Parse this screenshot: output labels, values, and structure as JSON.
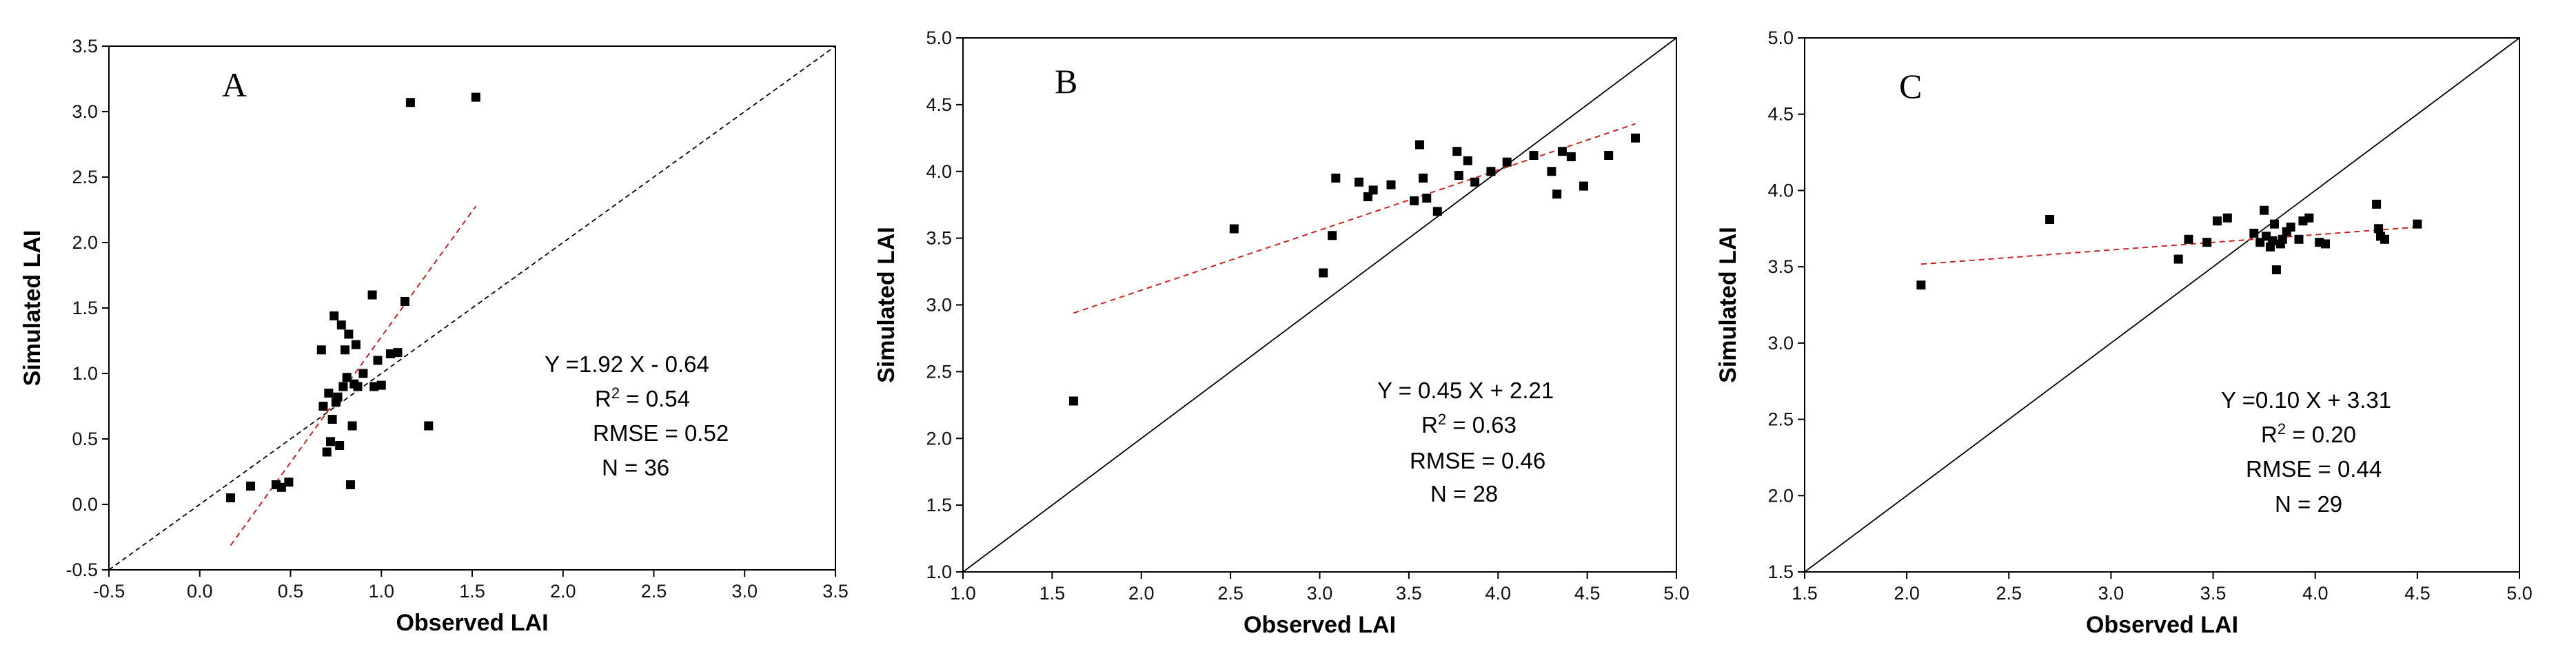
{
  "chart_data": [
    {
      "type": "scatter",
      "panel_label": "A",
      "xlabel": "Observed LAI",
      "ylabel": "Simulated LAI",
      "xlim": [
        -0.5,
        3.5
      ],
      "ylim": [
        -0.5,
        3.5
      ],
      "xticks": [
        "-0.5",
        "0.0",
        "0.5",
        "1.0",
        "1.5",
        "2.0",
        "2.5",
        "3.0",
        "3.5"
      ],
      "yticks": [
        "-0.5",
        "0.0",
        "0.5",
        "1.0",
        "1.5",
        "2.0",
        "2.5",
        "3.0",
        "3.5"
      ],
      "one_to_one_line": "dashed",
      "fit_line": {
        "slope": 1.92,
        "intercept": -0.64,
        "x_range": [
          0.17,
          1.52
        ],
        "color": "#cc2222",
        "style": "dashed"
      },
      "stats": {
        "equation": "Y =1.92 X - 0.64",
        "r2_label": "R",
        "r2_sup": "2",
        "r2_value": " =  0.54",
        "rmse": "RMSE = 0.52",
        "n": "N = 36"
      },
      "points": [
        [
          0.17,
          0.05
        ],
        [
          0.28,
          0.14
        ],
        [
          0.42,
          0.15
        ],
        [
          0.45,
          0.13
        ],
        [
          0.49,
          0.17
        ],
        [
          0.67,
          1.18
        ],
        [
          0.68,
          0.75
        ],
        [
          0.7,
          0.4
        ],
        [
          0.71,
          0.85
        ],
        [
          0.72,
          0.48
        ],
        [
          0.73,
          0.65
        ],
        [
          0.74,
          1.44
        ],
        [
          0.75,
          0.78
        ],
        [
          0.76,
          0.82
        ],
        [
          0.77,
          0.45
        ],
        [
          0.78,
          1.37
        ],
        [
          0.79,
          0.9
        ],
        [
          0.8,
          1.18
        ],
        [
          0.81,
          0.97
        ],
        [
          0.82,
          1.3
        ],
        [
          0.83,
          0.15
        ],
        [
          0.84,
          0.6
        ],
        [
          0.85,
          0.92
        ],
        [
          0.86,
          1.22
        ],
        [
          0.87,
          0.9
        ],
        [
          0.9,
          1.0
        ],
        [
          0.95,
          1.6
        ],
        [
          0.96,
          0.9
        ],
        [
          0.98,
          1.1
        ],
        [
          1.0,
          0.91
        ],
        [
          1.05,
          1.15
        ],
        [
          1.09,
          1.16
        ],
        [
          1.13,
          1.55
        ],
        [
          1.16,
          3.07
        ],
        [
          1.26,
          0.6
        ],
        [
          1.52,
          3.11
        ]
      ]
    },
    {
      "type": "scatter",
      "panel_label": "B",
      "xlabel": "Observed LAI",
      "ylabel": "Simulated LAI",
      "xlim": [
        1.0,
        5.0
      ],
      "ylim": [
        1.0,
        5.0
      ],
      "xticks": [
        "1.0",
        "1.5",
        "2.0",
        "2.5",
        "3.0",
        "3.5",
        "4.0",
        "4.5",
        "5.0"
      ],
      "yticks": [
        "1.0",
        "1.5",
        "2.0",
        "2.5",
        "3.0",
        "3.5",
        "4.0",
        "4.5",
        "5.0"
      ],
      "one_to_one_line": "solid",
      "fit_line": {
        "slope": 0.45,
        "intercept": 2.21,
        "x_range": [
          1.62,
          4.77
        ],
        "color": "#cc2222",
        "style": "dashed"
      },
      "stats": {
        "equation": "Y = 0.45 X + 2.21",
        "r2_label": "R",
        "r2_sup": "2",
        "r2_value": " =  0.63",
        "rmse": "RMSE = 0.46",
        "n": "N =  28"
      },
      "points": [
        [
          1.62,
          2.28
        ],
        [
          2.52,
          3.57
        ],
        [
          3.02,
          3.24
        ],
        [
          3.07,
          3.52
        ],
        [
          3.09,
          3.95
        ],
        [
          3.22,
          3.92
        ],
        [
          3.27,
          3.81
        ],
        [
          3.3,
          3.86
        ],
        [
          3.4,
          3.9
        ],
        [
          3.53,
          3.78
        ],
        [
          3.56,
          4.2
        ],
        [
          3.58,
          3.95
        ],
        [
          3.6,
          3.8
        ],
        [
          3.66,
          3.7
        ],
        [
          3.77,
          4.15
        ],
        [
          3.78,
          3.97
        ],
        [
          3.83,
          4.08
        ],
        [
          3.87,
          3.92
        ],
        [
          3.96,
          4.0
        ],
        [
          4.05,
          4.07
        ],
        [
          4.2,
          4.12
        ],
        [
          4.3,
          4.0
        ],
        [
          4.33,
          3.83
        ],
        [
          4.36,
          4.15
        ],
        [
          4.41,
          4.11
        ],
        [
          4.48,
          3.89
        ],
        [
          4.62,
          4.12
        ],
        [
          4.77,
          4.25
        ]
      ]
    },
    {
      "type": "scatter",
      "panel_label": "C",
      "xlabel": "Observed LAI",
      "ylabel": "Simulated LAI",
      "xlim": [
        1.5,
        5.0
      ],
      "ylim": [
        1.5,
        5.0
      ],
      "xticks": [
        "1.5",
        "2.0",
        "2.5",
        "3.0",
        "3.5",
        "4.0",
        "4.5",
        "5.0"
      ],
      "yticks": [
        "1.5",
        "2.0",
        "2.5",
        "3.0",
        "3.5",
        "4.0",
        "4.5",
        "5.0"
      ],
      "one_to_one_line": "solid",
      "fit_line": {
        "slope": 0.1,
        "intercept": 3.31,
        "x_range": [
          2.07,
          4.5
        ],
        "color": "#cc2222",
        "style": "dashed"
      },
      "stats": {
        "equation": "Y =0.10 X + 3.31",
        "r2_label": "R",
        "r2_sup": "2",
        "r2_value": " =  0.20",
        "rmse": "RMSE = 0.44",
        "n": "N = 29"
      },
      "points": [
        [
          2.07,
          3.38
        ],
        [
          2.7,
          3.81
        ],
        [
          3.33,
          3.55
        ],
        [
          3.38,
          3.68
        ],
        [
          3.47,
          3.66
        ],
        [
          3.52,
          3.8
        ],
        [
          3.57,
          3.82
        ],
        [
          3.7,
          3.72
        ],
        [
          3.73,
          3.66
        ],
        [
          3.75,
          3.87
        ],
        [
          3.76,
          3.7
        ],
        [
          3.78,
          3.63
        ],
        [
          3.79,
          3.67
        ],
        [
          3.8,
          3.78
        ],
        [
          3.81,
          3.48
        ],
        [
          3.83,
          3.65
        ],
        [
          3.84,
          3.68
        ],
        [
          3.86,
          3.73
        ],
        [
          3.88,
          3.76
        ],
        [
          3.92,
          3.68
        ],
        [
          3.94,
          3.8
        ],
        [
          3.97,
          3.82
        ],
        [
          4.02,
          3.66
        ],
        [
          4.05,
          3.65
        ],
        [
          4.3,
          3.91
        ],
        [
          4.31,
          3.75
        ],
        [
          4.32,
          3.7
        ],
        [
          4.34,
          3.68
        ],
        [
          4.5,
          3.78
        ]
      ]
    }
  ]
}
